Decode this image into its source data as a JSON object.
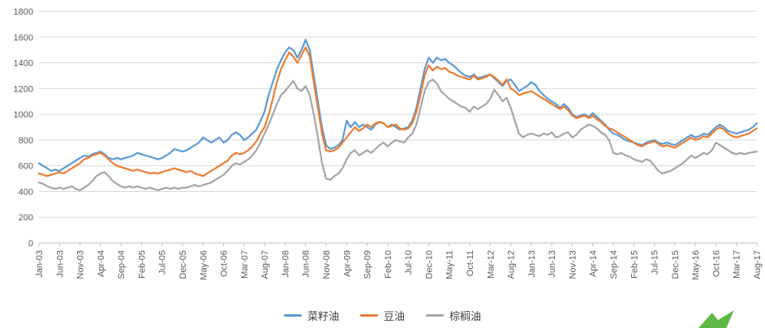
{
  "chart_data": {
    "type": "line",
    "title": "",
    "ylabel": "",
    "xlabel": "",
    "ylim": [
      0,
      1800
    ],
    "y_step": 200,
    "grid": true,
    "legend_position": "bottom",
    "tick_every": 5,
    "x_tick_labels": [
      "Jan-03",
      "Jun-03",
      "Nov-03",
      "Apr-04",
      "Sep-04",
      "Feb-05",
      "Jul-05",
      "Dec-05",
      "May-06",
      "Oct-06",
      "Mar-07",
      "Aug-07",
      "Jan-08",
      "Jun-08",
      "Nov-08",
      "Apr-09",
      "Sep-09",
      "Feb-10",
      "Jul-10",
      "Dec-10",
      "May-11",
      "Oct-11",
      "Mar-12",
      "Aug-12",
      "Jan-13",
      "Jun-13",
      "Nov-13",
      "Apr-14",
      "Sep-14",
      "Feb-15",
      "Jul-15",
      "Dec-15",
      "May-16",
      "Oct-16",
      "Mar-17",
      "Aug-17"
    ],
    "x_range_note": "monthly values Jan-2003 through Aug-2017",
    "series": [
      {
        "name": "菜籽油",
        "color": "#5B9BD5",
        "values": [
          620,
          600,
          580,
          560,
          570,
          560,
          580,
          600,
          620,
          640,
          660,
          680,
          670,
          690,
          700,
          710,
          690,
          660,
          650,
          660,
          650,
          660,
          670,
          680,
          700,
          690,
          680,
          670,
          660,
          650,
          660,
          680,
          700,
          730,
          720,
          710,
          720,
          740,
          760,
          780,
          820,
          800,
          780,
          800,
          820,
          780,
          800,
          840,
          860,
          840,
          800,
          820,
          850,
          880,
          950,
          1020,
          1150,
          1250,
          1350,
          1420,
          1480,
          1520,
          1500,
          1440,
          1500,
          1580,
          1500,
          1300,
          1100,
          900,
          760,
          730,
          740,
          760,
          800,
          950,
          900,
          940,
          900,
          920,
          900,
          880,
          920,
          940,
          930,
          900,
          920,
          900,
          880,
          890,
          900,
          950,
          1050,
          1200,
          1350,
          1440,
          1400,
          1440,
          1420,
          1430,
          1400,
          1380,
          1350,
          1320,
          1300,
          1290,
          1310,
          1280,
          1290,
          1300,
          1310,
          1280,
          1250,
          1220,
          1260,
          1270,
          1230,
          1180,
          1200,
          1220,
          1250,
          1230,
          1180,
          1150,
          1120,
          1100,
          1080,
          1050,
          1080,
          1050,
          1000,
          980,
          990,
          1000,
          980,
          1010,
          980,
          950,
          920,
          880,
          850,
          840,
          820,
          800,
          790,
          780,
          770,
          760,
          780,
          790,
          800,
          780,
          770,
          780,
          770,
          760,
          780,
          800,
          820,
          840,
          820,
          830,
          850,
          840,
          870,
          900,
          920,
          900,
          870,
          860,
          850,
          860,
          870,
          880,
          900,
          930
        ]
      },
      {
        "name": "豆油",
        "color": "#ED7D31",
        "values": [
          540,
          530,
          520,
          530,
          540,
          550,
          540,
          560,
          580,
          600,
          620,
          650,
          660,
          680,
          690,
          700,
          680,
          650,
          620,
          600,
          590,
          580,
          570,
          560,
          570,
          560,
          550,
          540,
          545,
          540,
          550,
          560,
          570,
          580,
          570,
          560,
          550,
          560,
          540,
          530,
          520,
          540,
          560,
          580,
          600,
          620,
          640,
          680,
          700,
          690,
          700,
          720,
          750,
          790,
          850,
          900,
          1000,
          1120,
          1250,
          1350,
          1420,
          1480,
          1450,
          1400,
          1460,
          1520,
          1450,
          1250,
          1050,
          850,
          720,
          710,
          720,
          740,
          780,
          820,
          860,
          900,
          870,
          890,
          920,
          900,
          930,
          940,
          930,
          900,
          910,
          920,
          890,
          880,
          890,
          930,
          1020,
          1150,
          1300,
          1380,
          1340,
          1370,
          1350,
          1360,
          1330,
          1320,
          1300,
          1290,
          1280,
          1270,
          1300,
          1270,
          1280,
          1290,
          1310,
          1290,
          1260,
          1230,
          1270,
          1200,
          1180,
          1150,
          1160,
          1170,
          1180,
          1160,
          1140,
          1120,
          1100,
          1080,
          1060,
          1040,
          1060,
          1030,
          990,
          970,
          980,
          990,
          970,
          990,
          960,
          940,
          910,
          890,
          880,
          860,
          840,
          820,
          800,
          780,
          760,
          750,
          770,
          780,
          790,
          770,
          750,
          760,
          750,
          740,
          760,
          780,
          800,
          820,
          800,
          810,
          830,
          820,
          850,
          880,
          900,
          880,
          850,
          830,
          820,
          830,
          840,
          850,
          870,
          890
        ]
      },
      {
        "name": "棕榈油",
        "color": "#A5A5A5",
        "values": [
          470,
          460,
          440,
          430,
          420,
          430,
          420,
          430,
          440,
          420,
          410,
          430,
          450,
          480,
          520,
          540,
          550,
          520,
          480,
          460,
          440,
          430,
          440,
          430,
          440,
          430,
          420,
          430,
          420,
          410,
          420,
          430,
          420,
          430,
          420,
          430,
          430,
          440,
          450,
          440,
          450,
          460,
          470,
          490,
          510,
          530,
          560,
          600,
          620,
          610,
          630,
          650,
          680,
          720,
          780,
          850,
          920,
          1000,
          1080,
          1150,
          1180,
          1220,
          1260,
          1200,
          1180,
          1220,
          1150,
          1000,
          820,
          620,
          500,
          490,
          520,
          540,
          580,
          650,
          700,
          720,
          680,
          700,
          720,
          700,
          730,
          760,
          780,
          750,
          780,
          800,
          790,
          780,
          820,
          850,
          920,
          1050,
          1180,
          1250,
          1270,
          1240,
          1180,
          1150,
          1120,
          1100,
          1080,
          1060,
          1050,
          1020,
          1060,
          1040,
          1060,
          1080,
          1120,
          1190,
          1150,
          1100,
          1130,
          1050,
          950,
          850,
          820,
          840,
          850,
          840,
          830,
          850,
          840,
          860,
          820,
          830,
          850,
          860,
          820,
          840,
          880,
          900,
          920,
          910,
          890,
          860,
          840,
          800,
          700,
          690,
          700,
          680,
          670,
          650,
          640,
          630,
          650,
          640,
          600,
          560,
          540,
          550,
          560,
          580,
          600,
          620,
          650,
          680,
          660,
          680,
          700,
          690,
          720,
          780,
          760,
          740,
          720,
          700,
          690,
          700,
          690,
          700,
          705,
          710
        ]
      }
    ]
  },
  "colors": {
    "grid": "#D9D9D9",
    "axis": "#BFBFBF",
    "tick_label": "#595959",
    "background": "#FFFFFF",
    "decoration_green": "#5FB845"
  },
  "legend": {
    "items": [
      {
        "label": "菜籽油"
      },
      {
        "label": "豆油"
      },
      {
        "label": "棕榈油"
      }
    ]
  }
}
